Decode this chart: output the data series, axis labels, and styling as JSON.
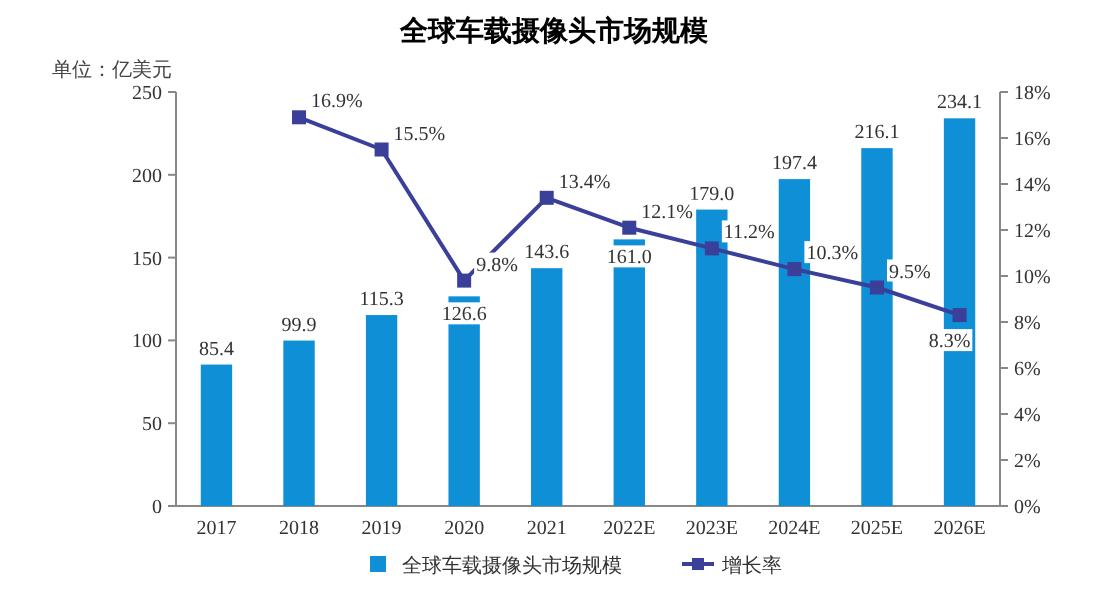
{
  "chart_data": {
    "type": "bar",
    "title": "全球车载摄像头市场规模",
    "ylabel": "单位：亿美元",
    "categories": [
      "2017",
      "2018",
      "2019",
      "2020",
      "2021",
      "2022E",
      "2023E",
      "2024E",
      "2025E",
      "2026E"
    ],
    "series": [
      {
        "name": "全球车载摄像头市场规模",
        "color": "#0e8fd6",
        "values": [
          85.4,
          99.9,
          115.3,
          126.6,
          143.6,
          161.0,
          179.0,
          197.4,
          216.1,
          234.1
        ],
        "value_labels": [
          "85.4",
          "99.9",
          "115.3",
          "126.6",
          "143.6",
          "161.0",
          "179.0",
          "197.4",
          "216.1",
          "234.1"
        ]
      },
      {
        "name": "增长率",
        "type": "line",
        "axis": "y2",
        "color": "#3a3f9a",
        "marker": "square",
        "values": [
          null,
          16.9,
          15.5,
          9.8,
          13.4,
          12.1,
          11.2,
          10.3,
          9.5,
          8.3
        ],
        "value_labels": [
          null,
          "16.9%",
          "15.5%",
          "9.8%",
          "13.4%",
          "12.1%",
          "11.2%",
          "10.3%",
          "9.5%",
          "8.3%"
        ]
      }
    ],
    "ylim": [
      0,
      250
    ],
    "yticks": [
      0,
      50,
      100,
      150,
      200,
      250
    ],
    "y2lim": [
      0,
      18
    ],
    "y2ticks": [
      {
        "value": 0,
        "label": "0%"
      },
      {
        "value": 2,
        "label": "2%"
      },
      {
        "value": 4,
        "label": "4%"
      },
      {
        "value": 6,
        "label": "6%"
      },
      {
        "value": 8,
        "label": "8%"
      },
      {
        "value": 10,
        "label": "10%"
      },
      {
        "value": 12,
        "label": "12%"
      },
      {
        "value": 14,
        "label": "14%"
      },
      {
        "value": 16,
        "label": "16%"
      },
      {
        "value": 18,
        "label": "18%"
      }
    ],
    "grid": false,
    "legend": "bottom"
  }
}
